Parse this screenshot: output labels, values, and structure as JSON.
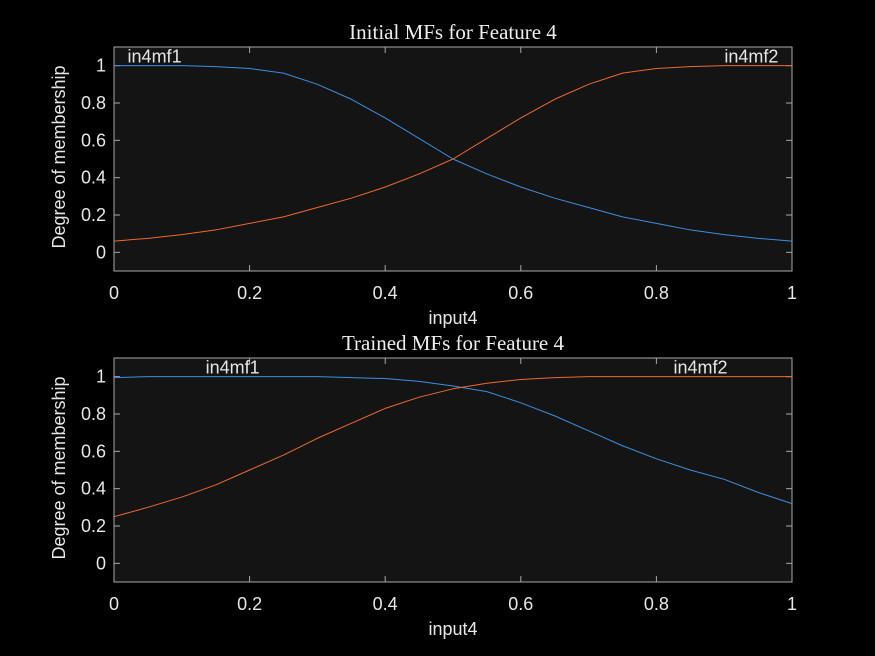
{
  "chart_data": [
    {
      "type": "line",
      "title": "Initial MFs for Feature 4",
      "xlabel": "input4",
      "ylabel": "Degree of membership",
      "xlim": [
        0,
        1
      ],
      "ylim": [
        -0.1,
        1.1
      ],
      "xticks": [
        "0",
        "0.2",
        "0.4",
        "0.6",
        "0.8",
        "1"
      ],
      "yticks": [
        "0",
        "0.2",
        "0.4",
        "0.6",
        "0.8",
        "1"
      ],
      "grid": false,
      "series": [
        {
          "name": "in4mf1",
          "color": "#3a8fe0",
          "label_x": 0.02,
          "x": [
            0,
            0.05,
            0.1,
            0.15,
            0.2,
            0.25,
            0.3,
            0.35,
            0.4,
            0.45,
            0.5,
            0.55,
            0.6,
            0.65,
            0.7,
            0.75,
            0.8,
            0.85,
            0.9,
            0.95,
            1
          ],
          "y": [
            1,
            1,
            1,
            0.995,
            0.985,
            0.96,
            0.9,
            0.82,
            0.72,
            0.61,
            0.5,
            0.42,
            0.35,
            0.29,
            0.24,
            0.19,
            0.155,
            0.12,
            0.095,
            0.075,
            0.06
          ]
        },
        {
          "name": "in4mf2",
          "color": "#ee6a2a",
          "label_x": 0.98,
          "x": [
            0,
            0.05,
            0.1,
            0.15,
            0.2,
            0.25,
            0.3,
            0.35,
            0.4,
            0.45,
            0.5,
            0.55,
            0.6,
            0.65,
            0.7,
            0.75,
            0.8,
            0.85,
            0.9,
            0.95,
            1
          ],
          "y": [
            0.06,
            0.075,
            0.095,
            0.12,
            0.155,
            0.19,
            0.24,
            0.29,
            0.35,
            0.42,
            0.5,
            0.61,
            0.72,
            0.82,
            0.9,
            0.96,
            0.985,
            0.995,
            1,
            1,
            1
          ]
        }
      ]
    },
    {
      "type": "line",
      "title": "Trained MFs for Feature 4",
      "xlabel": "input4",
      "ylabel": "Degree of membership",
      "xlim": [
        0,
        1
      ],
      "ylim": [
        -0.1,
        1.1
      ],
      "xticks": [
        "0",
        "0.2",
        "0.4",
        "0.6",
        "0.8",
        "1"
      ],
      "yticks": [
        "0",
        "0.2",
        "0.4",
        "0.6",
        "0.8",
        "1"
      ],
      "grid": false,
      "series": [
        {
          "name": "in4mf1",
          "color": "#3a8fe0",
          "label_x": 0.175,
          "x": [
            0,
            0.05,
            0.1,
            0.15,
            0.2,
            0.25,
            0.3,
            0.35,
            0.4,
            0.45,
            0.5,
            0.55,
            0.6,
            0.65,
            0.7,
            0.75,
            0.8,
            0.85,
            0.9,
            0.95,
            1
          ],
          "y": [
            0.995,
            1,
            1,
            1,
            1,
            1,
            1,
            0.995,
            0.99,
            0.975,
            0.95,
            0.92,
            0.86,
            0.79,
            0.71,
            0.63,
            0.56,
            0.5,
            0.45,
            0.38,
            0.32
          ]
        },
        {
          "name": "in4mf2",
          "color": "#ee6a2a",
          "label_x": 0.865,
          "x": [
            0,
            0.05,
            0.1,
            0.15,
            0.2,
            0.25,
            0.3,
            0.35,
            0.4,
            0.45,
            0.5,
            0.55,
            0.6,
            0.65,
            0.7,
            0.75,
            0.8,
            0.85,
            0.9,
            0.95,
            1
          ],
          "y": [
            0.25,
            0.3,
            0.355,
            0.42,
            0.5,
            0.58,
            0.67,
            0.75,
            0.83,
            0.89,
            0.935,
            0.965,
            0.985,
            0.995,
            1,
            1,
            1,
            1,
            1,
            1,
            1
          ]
        }
      ]
    }
  ]
}
